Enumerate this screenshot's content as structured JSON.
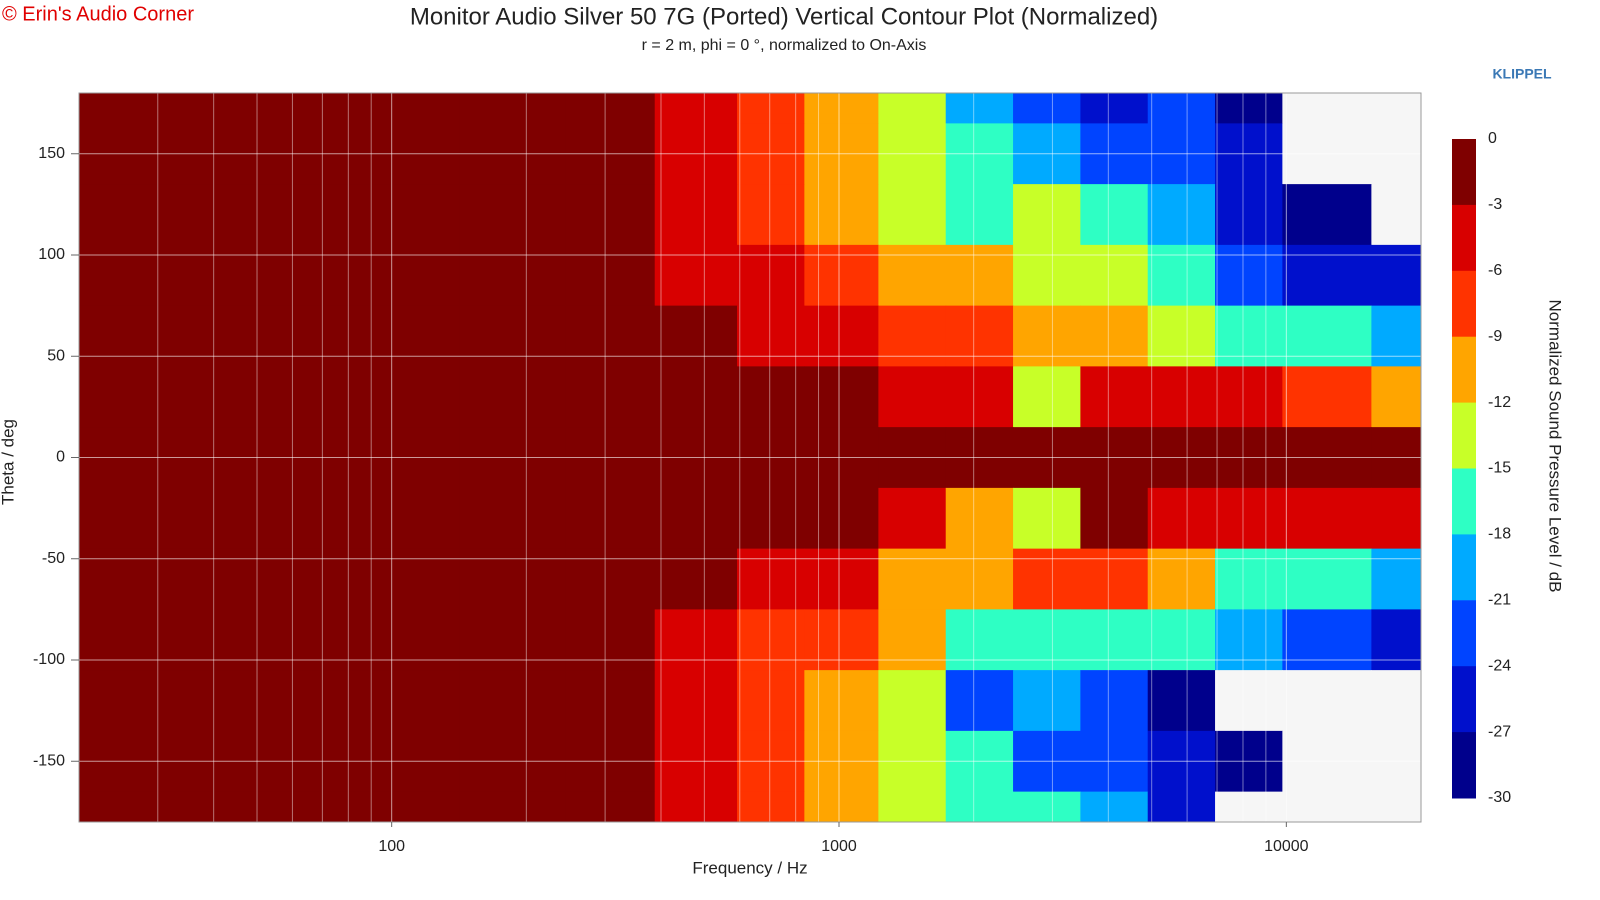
{
  "chart_data": {
    "type": "contour",
    "watermark": "© Erin's Audio Corner",
    "title": "Monitor Audio Silver 50 7G (Ported) Vertical Contour Plot (Normalized)",
    "subtitle": "r = 2 m, phi = 0 °, normalized to On-Axis",
    "brand": "KLIPPEL",
    "x_label": "Frequency / Hz",
    "y_label": "Theta / deg",
    "colorbar_label": "Normalized Sound Pressure Level / dB",
    "x_scale": "log",
    "xlim": [
      20,
      20000
    ],
    "xticks": [
      100,
      1000,
      10000
    ],
    "xminorticks": [
      30,
      40,
      50,
      60,
      70,
      80,
      90,
      200,
      300,
      400,
      500,
      600,
      700,
      800,
      900,
      2000,
      3000,
      4000,
      5000,
      6000,
      7000,
      8000,
      9000
    ],
    "ylim": [
      -180,
      180
    ],
    "yticks": [
      150,
      100,
      50,
      0,
      -50,
      -100,
      -150
    ],
    "grid": true,
    "x": [
      20,
      50,
      100,
      200,
      300,
      500,
      700,
      1000,
      1500,
      2000,
      3000,
      4000,
      6000,
      8000,
      12000,
      20000
    ],
    "y": [
      180,
      150,
      120,
      90,
      60,
      30,
      0,
      -30,
      -60,
      -90,
      -120,
      -150,
      -180
    ],
    "z": [
      [
        -1,
        -1,
        -1,
        -1,
        -2,
        -5,
        -7,
        -10,
        -14,
        -20,
        -24,
        -25,
        -24,
        -28,
        -33,
        -33
      ],
      [
        -1,
        -1,
        -1,
        -1,
        -2,
        -5,
        -7,
        -11,
        -14,
        -18,
        -20,
        -22,
        -24,
        -27,
        -33,
        -33
      ],
      [
        -1,
        -1,
        -1,
        -1,
        -2,
        -4,
        -7,
        -10,
        -13,
        -16,
        -14,
        -16,
        -20,
        -26,
        -30,
        -33
      ],
      [
        -1,
        -1,
        -1,
        -1,
        -1,
        -4,
        -6,
        -8,
        -10,
        -12,
        -13,
        -14,
        -18,
        -22,
        -25,
        -27
      ],
      [
        -1,
        -2,
        -1,
        -1,
        -1,
        -2,
        -4,
        -6,
        -7,
        -9,
        -10,
        -11,
        -13,
        -16,
        -18,
        -20
      ],
      [
        -1,
        -1,
        -1,
        -1,
        -1,
        -1,
        -2,
        -3,
        -4,
        -6,
        -15,
        -5,
        -5,
        -6,
        -8,
        -10
      ],
      [
        0,
        0,
        0,
        0,
        0,
        0,
        0,
        0,
        0,
        0,
        0,
        0,
        0,
        0,
        0,
        0
      ],
      [
        -1,
        -1,
        -1,
        -1,
        -1,
        -1,
        -2,
        -3,
        -5,
        -10,
        -13,
        -3,
        -4,
        -4,
        -5,
        -6
      ],
      [
        -1,
        -2,
        -1,
        -1,
        -1,
        -3,
        -4,
        -6,
        -10,
        -12,
        -8,
        -8,
        -12,
        -16,
        -18,
        -20
      ],
      [
        -1,
        -2,
        -1,
        -1,
        -2,
        -4,
        -7,
        -8,
        -12,
        -16,
        -18,
        -17,
        -18,
        -20,
        -24,
        -26
      ],
      [
        -1,
        -1,
        -1,
        -1,
        -2,
        -4,
        -7,
        -10,
        -14,
        -22,
        -20,
        -22,
        -28,
        -33,
        -33,
        -33
      ],
      [
        -1,
        -1,
        -1,
        -1,
        -2,
        -5,
        -7,
        -11,
        -14,
        -18,
        -22,
        -24,
        -27,
        -30,
        -33,
        -33
      ],
      [
        -1,
        -1,
        -1,
        -1,
        -2,
        -5,
        -7,
        -10,
        -13,
        -16,
        -18,
        -20,
        -25,
        -33,
        -33,
        -33
      ]
    ],
    "levels": [
      0,
      -3,
      -6,
      -9,
      -12,
      -15,
      -18,
      -21,
      -24,
      -27,
      -30
    ],
    "colors": [
      "#7f0000",
      "#d80000",
      "#ff3300",
      "#ffa500",
      "#c8ff28",
      "#2effc4",
      "#00aaff",
      "#0044ff",
      "#0010cc",
      "#00008c"
    ],
    "below_color": "#f6f6f6"
  }
}
